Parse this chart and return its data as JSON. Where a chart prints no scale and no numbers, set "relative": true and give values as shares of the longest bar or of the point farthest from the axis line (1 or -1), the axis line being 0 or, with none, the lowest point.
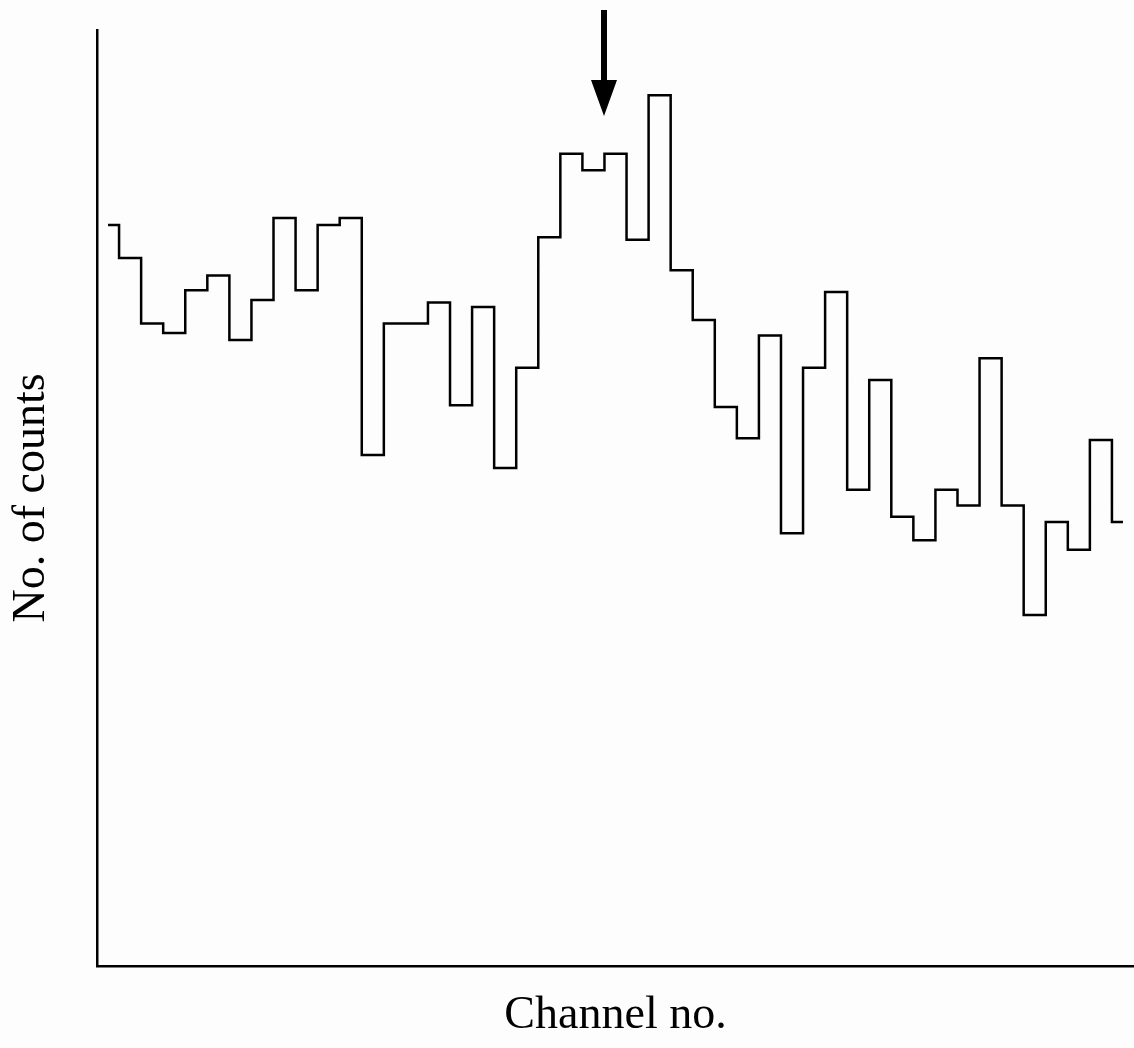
{
  "chart_data": {
    "type": "step",
    "xlabel": "Channel no.",
    "ylabel": "No. of counts",
    "relative": true,
    "color": "#000000",
    "categories": [
      null,
      null,
      null,
      null,
      null,
      null,
      null,
      null,
      null,
      null,
      null,
      null,
      null,
      null,
      null,
      null,
      null,
      null,
      null,
      null,
      null,
      null,
      null,
      null,
      null,
      null,
      null,
      null,
      null,
      null,
      null,
      null,
      null,
      null,
      null,
      null,
      null,
      null,
      null,
      null,
      null,
      null,
      null,
      null,
      null,
      null,
      null
    ],
    "values": [
      0.851,
      0.813,
      0.738,
      0.727,
      0.776,
      0.793,
      0.719,
      0.765,
      0.859,
      0.776,
      0.851,
      0.859,
      0.587,
      0.738,
      0.738,
      0.762,
      0.644,
      0.757,
      0.572,
      0.687,
      0.837,
      0.933,
      0.914,
      0.933,
      0.834,
      1,
      0.799,
      0.742,
      0.642,
      0.606,
      0.724,
      0.497,
      0.687,
      0.774,
      0.547,
      0.673,
      0.516,
      0.489,
      0.547,
      0.529,
      0.698,
      0.529,
      0.403,
      0.51,
      0.478,
      0.604,
      0.51
    ]
  }
}
